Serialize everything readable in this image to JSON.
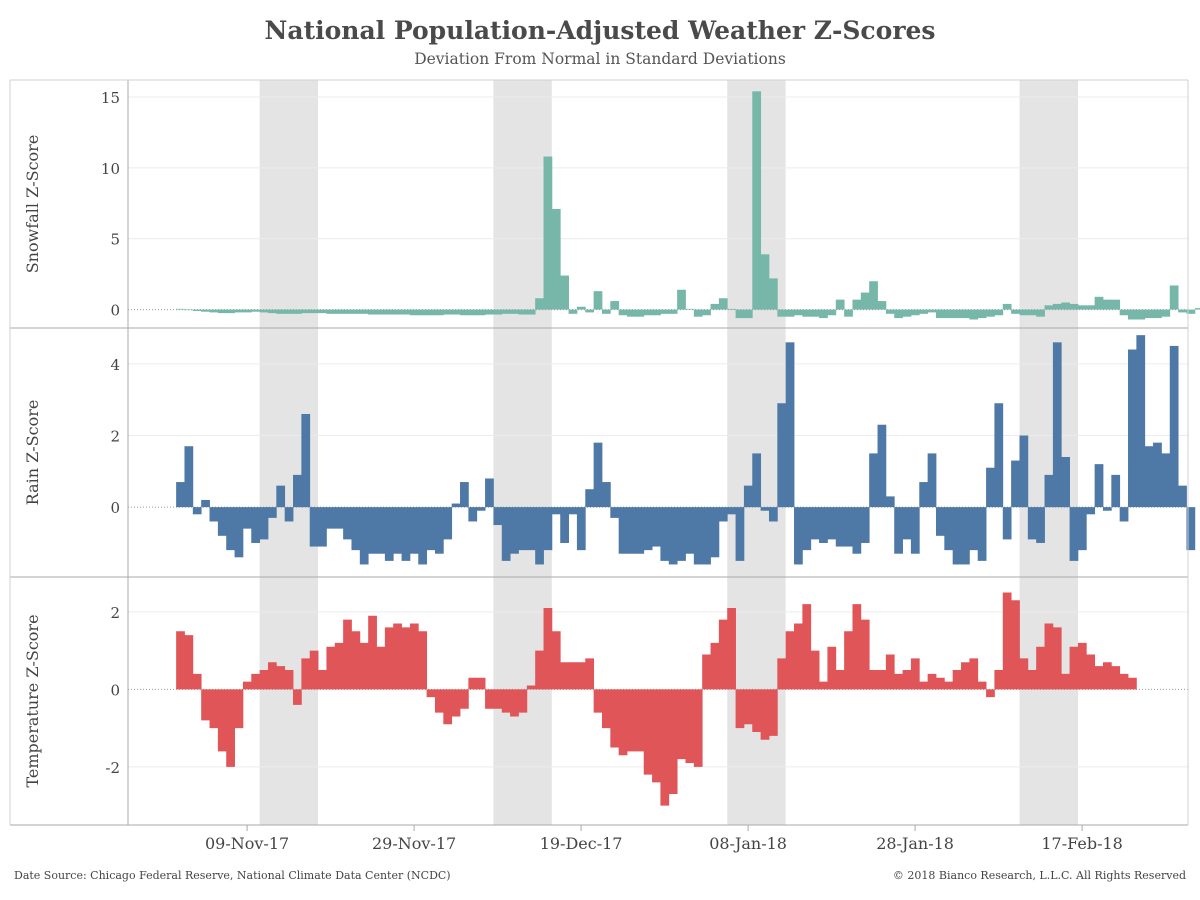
{
  "title": "National Population-Adjusted Weather Z-Scores",
  "subtitle": "Deviation From Normal in Standard Deviations",
  "source": "Date Source: Chicago Federal Reserve, National Climate Data Center (NCDC)",
  "copyright": "© 2018 Bianco Research, L.L.C. All Rights Reserved",
  "chart_data": {
    "type": "bar",
    "x_start": "2017-11-01",
    "x_ticks": [
      "09-Nov-17",
      "29-Nov-17",
      "19-Dec-17",
      "08-Jan-18",
      "28-Jan-18",
      "17-Feb-18"
    ],
    "x_tick_dates": [
      "2017-11-09",
      "2017-11-29",
      "2017-12-19",
      "2018-01-08",
      "2018-01-28",
      "2018-02-17"
    ],
    "shaded_ranges": [
      [
        "2017-11-11",
        "2017-11-17"
      ],
      [
        "2017-12-09",
        "2017-12-15"
      ],
      [
        "2018-01-06",
        "2018-01-12"
      ],
      [
        "2018-02-10",
        "2018-02-16"
      ]
    ],
    "panels": [
      {
        "name": "Snowfall Z-Score",
        "color": "#76b7a9",
        "ylim": [
          -1.3,
          16.2
        ],
        "yticks": [
          0,
          5,
          10,
          15
        ],
        "values": [
          0.05,
          0.0,
          -0.1,
          -0.15,
          -0.2,
          -0.25,
          -0.25,
          -0.2,
          -0.2,
          -0.15,
          -0.2,
          -0.25,
          -0.3,
          -0.3,
          -0.3,
          -0.25,
          -0.25,
          -0.25,
          -0.3,
          -0.3,
          -0.3,
          -0.3,
          -0.3,
          -0.35,
          -0.35,
          -0.35,
          -0.35,
          -0.35,
          -0.4,
          -0.4,
          -0.4,
          -0.4,
          -0.35,
          -0.35,
          -0.4,
          -0.4,
          -0.4,
          -0.35,
          -0.35,
          -0.3,
          -0.3,
          -0.35,
          -0.35,
          0.8,
          10.8,
          7.1,
          2.4,
          -0.3,
          0.2,
          -0.2,
          1.3,
          -0.3,
          0.6,
          -0.4,
          -0.5,
          -0.5,
          -0.4,
          -0.4,
          -0.3,
          -0.3,
          1.4,
          0.05,
          -0.5,
          -0.4,
          0.4,
          0.8,
          0.05,
          -0.6,
          -0.6,
          15.4,
          3.9,
          2.2,
          -0.5,
          -0.5,
          -0.4,
          -0.5,
          -0.5,
          -0.6,
          -0.4,
          0.7,
          -0.5,
          0.7,
          1.2,
          2.0,
          0.6,
          -0.3,
          -0.6,
          -0.5,
          -0.4,
          -0.3,
          -0.2,
          -0.6,
          -0.6,
          -0.6,
          -0.6,
          -0.7,
          -0.6,
          -0.5,
          -0.4,
          0.4,
          -0.3,
          -0.4,
          -0.4,
          -0.5,
          0.3,
          0.4,
          0.5,
          0.4,
          0.3,
          0.3,
          0.9,
          0.7,
          0.7,
          -0.4,
          -0.7,
          -0.7,
          -0.6,
          -0.6,
          -0.5,
          1.7,
          -0.2,
          -0.3,
          0.1,
          -0.3,
          0.2,
          0.1,
          -0.4,
          0.05,
          0.05
        ]
      },
      {
        "name": "Rain Z-Score",
        "color": "#4e78a5",
        "ylim": [
          -1.95,
          5.0
        ],
        "yticks": [
          0,
          2,
          4
        ],
        "values": [
          0.7,
          1.7,
          -0.2,
          0.2,
          -0.4,
          -0.8,
          -1.2,
          -1.4,
          -0.6,
          -1.0,
          -0.9,
          -0.3,
          0.6,
          -0.4,
          0.9,
          2.6,
          -1.1,
          -1.1,
          -0.6,
          -0.6,
          -0.9,
          -1.2,
          -1.6,
          -1.3,
          -1.3,
          -1.5,
          -1.3,
          -1.5,
          -1.3,
          -1.6,
          -1.2,
          -1.3,
          -0.9,
          0.1,
          0.7,
          -0.4,
          -0.1,
          0.8,
          -0.5,
          -1.5,
          -1.3,
          -1.2,
          -1.2,
          -1.6,
          -1.2,
          -0.2,
          -1.0,
          -0.2,
          -1.2,
          0.5,
          1.8,
          0.7,
          -0.3,
          -1.3,
          -1.3,
          -1.3,
          -1.2,
          -1.1,
          -1.5,
          -1.6,
          -1.5,
          -1.3,
          -1.6,
          -1.6,
          -1.4,
          -0.4,
          -0.2,
          -1.5,
          0.6,
          1.5,
          -0.1,
          -0.4,
          2.9,
          4.6,
          -1.6,
          -1.2,
          -0.9,
          -1.0,
          -0.9,
          -1.1,
          -1.1,
          -1.3,
          -1.0,
          1.5,
          2.3,
          0.3,
          -1.3,
          -0.9,
          -1.3,
          0.7,
          1.5,
          -0.8,
          -1.2,
          -1.6,
          -1.6,
          -1.2,
          -1.5,
          1.1,
          2.9,
          -0.9,
          1.3,
          2.0,
          -0.9,
          -1.0,
          0.9,
          4.6,
          1.4,
          -1.5,
          -1.2,
          -0.2,
          1.2,
          -0.1,
          0.9,
          -0.4,
          4.4,
          4.8,
          1.7,
          1.8,
          1.5,
          4.5,
          0.6,
          -1.2
        ]
      },
      {
        "name": "Temperature Z-Score",
        "color": "#e05558",
        "ylim": [
          -3.5,
          2.9
        ],
        "yticks": [
          -2,
          0,
          2
        ],
        "values": [
          1.5,
          1.4,
          0.4,
          -0.8,
          -1.0,
          -1.6,
          -2.0,
          -1.0,
          0.2,
          0.4,
          0.5,
          0.7,
          0.6,
          0.5,
          -0.4,
          0.8,
          1.0,
          0.5,
          1.1,
          1.2,
          1.8,
          1.5,
          1.2,
          1.9,
          1.1,
          1.6,
          1.7,
          1.6,
          1.7,
          1.5,
          -0.2,
          -0.6,
          -0.9,
          -0.7,
          -0.5,
          0.3,
          0.3,
          -0.5,
          -0.5,
          -0.6,
          -0.7,
          -0.6,
          0.1,
          1.0,
          2.1,
          1.5,
          0.7,
          0.7,
          0.7,
          0.8,
          -0.6,
          -1.0,
          -1.5,
          -1.7,
          -1.6,
          -1.6,
          -2.2,
          -2.4,
          -3.0,
          -2.7,
          -1.8,
          -1.9,
          -2.0,
          0.9,
          1.2,
          1.8,
          2.1,
          -1.0,
          -0.9,
          -1.1,
          -1.3,
          -1.2,
          0.8,
          1.5,
          1.7,
          2.2,
          1.0,
          0.2,
          1.1,
          0.5,
          1.5,
          2.2,
          1.8,
          0.5,
          0.5,
          0.9,
          0.4,
          0.5,
          0.8,
          0.2,
          0.4,
          0.3,
          0.2,
          0.5,
          0.7,
          0.8,
          0.2,
          -0.2,
          0.5,
          2.5,
          2.3,
          0.8,
          0.5,
          1.1,
          1.7,
          1.6,
          0.4,
          1.1,
          1.2,
          0.9,
          0.6,
          0.7,
          0.6,
          0.4,
          0.3
        ]
      }
    ]
  }
}
